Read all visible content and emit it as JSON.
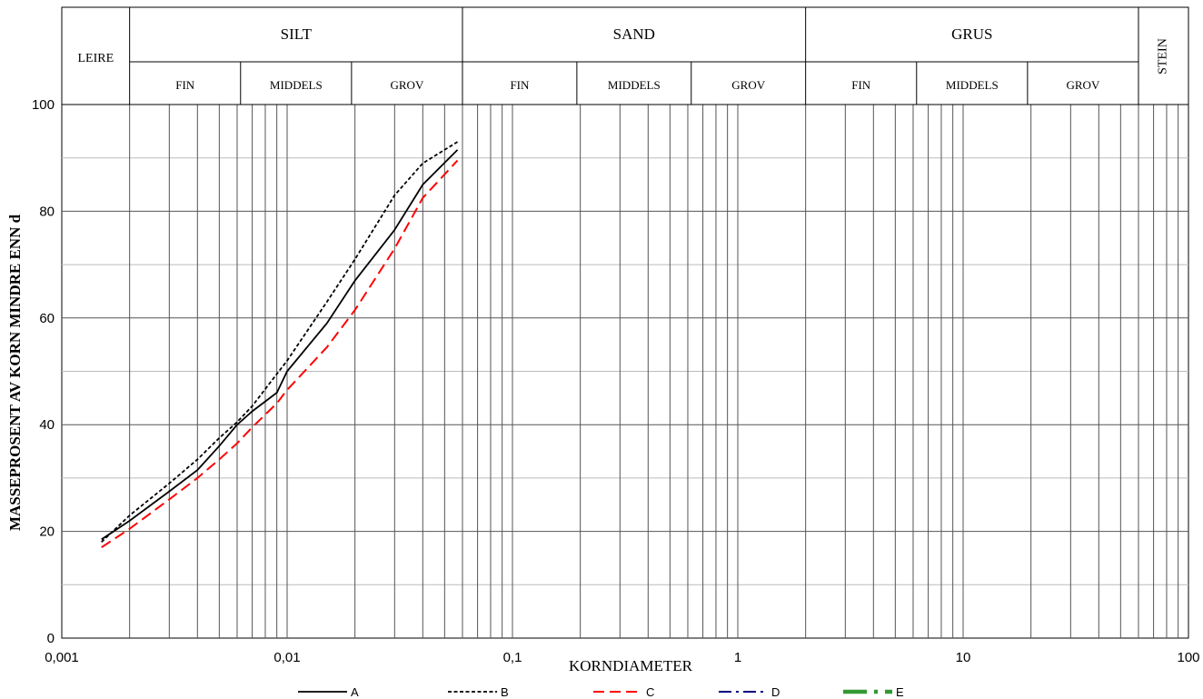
{
  "header": {
    "groups": [
      {
        "label": "LEIRE",
        "subs": []
      },
      {
        "label": "SILT",
        "subs": [
          "FIN",
          "MIDDELS",
          "GROV"
        ]
      },
      {
        "label": "SAND",
        "subs": [
          "FIN",
          "MIDDELS",
          "GROV"
        ]
      },
      {
        "label": "GRUS",
        "subs": [
          "FIN",
          "MIDDELS",
          "GROV"
        ]
      },
      {
        "label": "STEIN",
        "subs": []
      }
    ]
  },
  "chart_data": {
    "type": "line",
    "title": "",
    "xlabel": "KORNDIAMETER",
    "ylabel": "MASSEPROSENT AV KORN MINDRE ENN d",
    "x_scale": "log",
    "xlim": [
      0.001,
      100
    ],
    "ylim": [
      0,
      100
    ],
    "x_tick_labels": [
      "0,001",
      "0,01",
      "0,1",
      "1",
      "10",
      "100"
    ],
    "y_tick_labels": [
      "0",
      "20",
      "40",
      "60",
      "80",
      "100"
    ],
    "grid": true,
    "legend_position": "bottom",
    "series": [
      {
        "name": "A",
        "style": "solid",
        "color": "#000000",
        "x": [
          0.0015,
          0.002,
          0.003,
          0.004,
          0.005,
          0.006,
          0.007,
          0.009,
          0.01,
          0.015,
          0.02,
          0.03,
          0.04,
          0.057
        ],
        "y": [
          18.5,
          22,
          27.5,
          31.5,
          36,
          40,
          42.5,
          46,
          50,
          59,
          67,
          76.5,
          85,
          91.5
        ]
      },
      {
        "name": "B",
        "style": "dotted",
        "color": "#000000",
        "x": [
          0.0015,
          0.002,
          0.003,
          0.004,
          0.005,
          0.006,
          0.007,
          0.009,
          0.01,
          0.015,
          0.02,
          0.03,
          0.04,
          0.057
        ],
        "y": [
          18,
          23,
          29,
          33.5,
          37.5,
          40.5,
          43.5,
          49.5,
          52,
          63,
          71,
          83,
          89,
          93
        ]
      },
      {
        "name": "C",
        "style": "dashed",
        "color": "#ff0000",
        "x": [
          0.0015,
          0.002,
          0.003,
          0.004,
          0.005,
          0.006,
          0.007,
          0.009,
          0.01,
          0.015,
          0.02,
          0.03,
          0.04,
          0.057
        ],
        "y": [
          17,
          20.5,
          26,
          30,
          33.5,
          36.5,
          39.5,
          44,
          46.5,
          54.5,
          61.5,
          73,
          82.5,
          89.5
        ]
      },
      {
        "name": "D",
        "style": "dashdot",
        "color": "#000080",
        "x": [],
        "y": []
      },
      {
        "name": "E",
        "style": "thick",
        "color": "#339933",
        "x": [],
        "y": []
      }
    ]
  }
}
